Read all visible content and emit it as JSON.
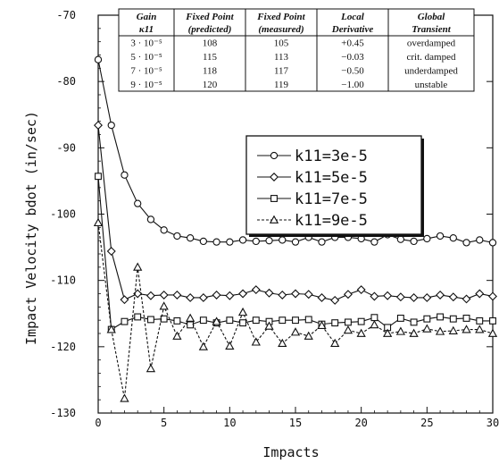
{
  "chart_data": {
    "type": "line",
    "title": "",
    "xlabel": "Impacts",
    "ylabel": "Impact Velocity bdot (in/sec)",
    "xlim": [
      0,
      30
    ],
    "ylim": [
      -130,
      -70
    ],
    "xticks": [
      "0",
      "5",
      "10",
      "15",
      "20",
      "25",
      "30"
    ],
    "yticks": [
      "-70",
      "-80",
      "-90",
      "-100",
      "-110",
      "-120",
      "-130"
    ],
    "grid": false,
    "legend_position": "center-right",
    "x": [
      0,
      1,
      2,
      3,
      4,
      5,
      6,
      7,
      8,
      9,
      10,
      11,
      12,
      13,
      14,
      15,
      16,
      17,
      18,
      19,
      20,
      21,
      22,
      23,
      24,
      25,
      26,
      27,
      28,
      29,
      30
    ],
    "series": [
      {
        "name": "k11=3e-5",
        "marker": "circle",
        "line": "solid",
        "values": [
          -76.7,
          -86.6,
          -94.1,
          -98.4,
          -100.8,
          -102.4,
          -103.3,
          -103.6,
          -104.1,
          -104.2,
          -104.2,
          -103.9,
          -104.1,
          -104.0,
          -103.9,
          -104.2,
          -103.5,
          -104.2,
          -103.5,
          -103.5,
          -103.7,
          -104.2,
          -103.1,
          -103.8,
          -104.1,
          -103.7,
          -103.3,
          -103.6,
          -104.3,
          -103.9,
          -104.3
        ]
      },
      {
        "name": "k11=5e-5",
        "marker": "diamond",
        "line": "solid",
        "values": [
          -86.6,
          -105.6,
          -112.9,
          -112.0,
          -112.3,
          -112.2,
          -112.2,
          -112.6,
          -112.6,
          -112.2,
          -112.3,
          -112.0,
          -111.4,
          -111.9,
          -112.2,
          -112.0,
          -112.1,
          -112.6,
          -113.0,
          -112.1,
          -111.4,
          -112.4,
          -112.3,
          -112.5,
          -112.6,
          -112.6,
          -112.2,
          -112.5,
          -112.8,
          -112.0,
          -112.4
        ]
      },
      {
        "name": "k11=7e-5",
        "marker": "square",
        "line": "solid",
        "values": [
          -94.3,
          -117.4,
          -116.2,
          -115.5,
          -115.9,
          -115.8,
          -116.1,
          -116.7,
          -116.0,
          -116.4,
          -116.0,
          -116.4,
          -116.0,
          -116.2,
          -116.0,
          -116.0,
          -115.9,
          -116.6,
          -116.4,
          -116.3,
          -116.2,
          -115.6,
          -117.1,
          -115.7,
          -116.3,
          -115.8,
          -115.5,
          -115.8,
          -115.7,
          -116.1,
          -116.1
        ]
      },
      {
        "name": "k11=9e-5",
        "marker": "triangle",
        "line": "dashed",
        "values": [
          -101.3,
          -117.4,
          -127.8,
          -108.0,
          -123.3,
          -113.9,
          -118.4,
          -115.7,
          -120.0,
          -116.2,
          -119.9,
          -114.8,
          -119.3,
          -116.9,
          -119.5,
          -117.8,
          -118.4,
          -116.8,
          -119.5,
          -117.5,
          -118.0,
          -116.7,
          -118.0,
          -117.7,
          -118.0,
          -117.3,
          -117.7,
          -117.6,
          -117.4,
          -117.4,
          -118.0
        ]
      }
    ]
  },
  "table": {
    "headers": [
      [
        "Gain",
        "κ11"
      ],
      [
        "Fixed Point",
        "(predicted)"
      ],
      [
        "Fixed Point",
        "(measured)"
      ],
      [
        "Local",
        "Derivative"
      ],
      [
        "Global",
        "Transient"
      ]
    ],
    "rows": [
      [
        "3 · 10⁻⁵",
        "108",
        "105",
        "+0.45",
        "overdamped"
      ],
      [
        "5 · 10⁻⁵",
        "115",
        "113",
        "−0.03",
        "crit. damped"
      ],
      [
        "7 · 10⁻⁵",
        "118",
        "117",
        "−0.50",
        "underdamped"
      ],
      [
        "9 · 10⁻⁵",
        "120",
        "119",
        "−1.00",
        "unstable"
      ]
    ]
  }
}
